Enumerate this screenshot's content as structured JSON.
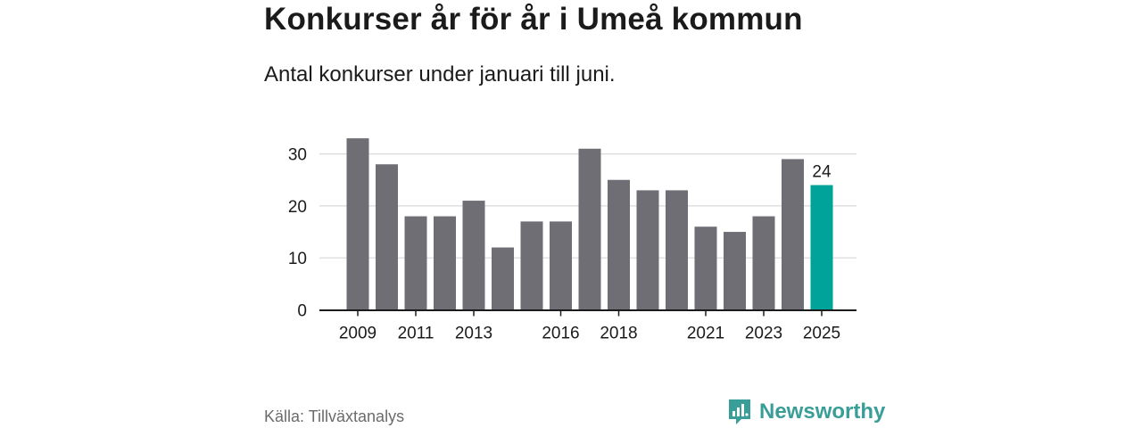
{
  "header": {
    "title": "Konkurser år för år i Umeå kommun",
    "subtitle": "Antal konkurser under januari till juni."
  },
  "footer": {
    "source": "Källa: Tillväxtanalys",
    "brand": "Newsworthy"
  },
  "colors": {
    "bar": "#6f6e74",
    "highlight": "#00a399",
    "grid": "#d9d9d9",
    "axis": "#1b1b1b",
    "brand": "#3a9e98"
  },
  "chart_data": {
    "type": "bar",
    "categories": [
      "2009",
      "2010",
      "2011",
      "2012",
      "2013",
      "2014",
      "2015",
      "2016",
      "2017",
      "2018",
      "2019",
      "2020",
      "2021",
      "2022",
      "2023",
      "2024",
      "2025"
    ],
    "values": [
      33,
      28,
      18,
      18,
      21,
      12,
      17,
      17,
      31,
      25,
      23,
      23,
      16,
      15,
      18,
      29,
      24
    ],
    "tick_labels_x": [
      "2009",
      "2011",
      "2013",
      "2016",
      "2018",
      "2021",
      "2023",
      "2025"
    ],
    "yticks": [
      0,
      10,
      20,
      30
    ],
    "ylim": [
      0,
      35
    ],
    "highlight_category": "2025",
    "data_labels": [
      {
        "category": "2025",
        "label": "24"
      }
    ],
    "grid": true,
    "legend": "none"
  }
}
